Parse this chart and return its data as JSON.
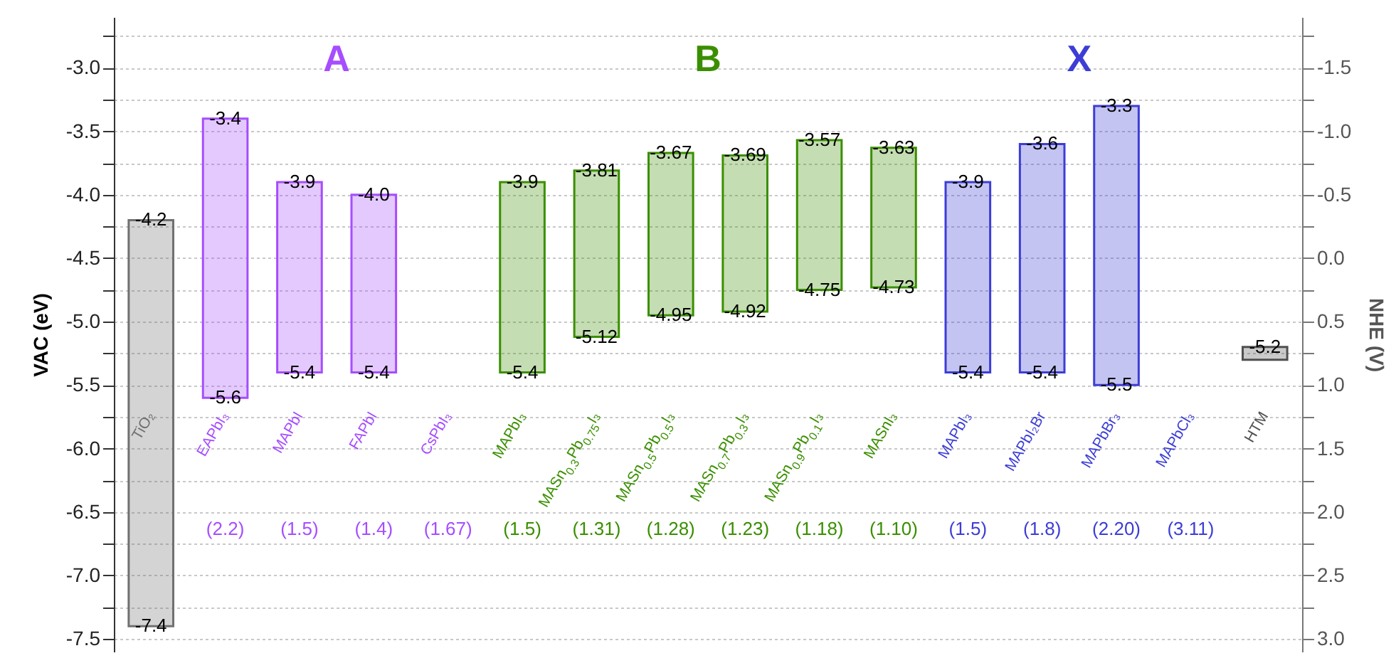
{
  "chart_data": {
    "type": "bar",
    "ylabel": "VAC (eV)",
    "y2label": "NHE (V)",
    "categories": [
      "TiO₂",
      "EAPbI₃",
      "MAPbI",
      "FAPbI",
      "CsPbI₃",
      "MAPbI₃",
      "MASn$_{0.3}$Pb$_{0.75}$I₃",
      "MASn$_{0.5}$Pb$_{0.5}$I₃",
      "MASn$_{0.7}$Pb$_{0.3}$I₃",
      "MASn$_{0.9}$Pb$_{0.1}$I₃",
      "MASnI₃",
      "MAPbI₃",
      "MAPbI₂Br",
      "MAPbBr₃",
      "MAPbCl₃",
      "HTM"
    ],
    "base": [
      -7.4,
      -5.6,
      -5.4,
      -5.4,
      null,
      -5.4,
      -5.12,
      -4.95,
      -4.92,
      -4.75,
      -4.73,
      -5.4,
      -5.4,
      -5.5,
      null,
      -5.3
    ],
    "values": [
      3.2,
      2.2,
      1.5,
      1.4,
      null,
      1.5,
      1.31,
      1.28,
      1.23,
      1.18,
      1.1,
      1.5,
      1.8,
      2.2,
      null,
      0.1
    ],
    "colors": [
      "#707070",
      "#a64dff",
      "#a64dff",
      "#a64dff",
      "#a64dff",
      "#3a8f00",
      "#3a8f00",
      "#3a8f00",
      "#3a8f00",
      "#3a8f00",
      "#3a8f00",
      "#3d3dd6",
      "#3d3dd6",
      "#3d3dd6",
      "#3d3dd6",
      "#505050"
    ],
    "ylim": [
      -7.6,
      -2.6
    ],
    "yticks": [
      {
        "value": -7.5,
        "label": "-7.5"
      },
      {
        "value": -7.25,
        "label": null
      },
      {
        "value": -7,
        "label": "-7.0"
      },
      {
        "value": -6.75,
        "label": null
      },
      {
        "value": -6.5,
        "label": "-6.5"
      },
      {
        "value": -6.25,
        "label": null
      },
      {
        "value": -6,
        "label": "-6.0"
      },
      {
        "value": -5.75,
        "label": null
      },
      {
        "value": -5.5,
        "label": "-5.5"
      },
      {
        "value": -5.25,
        "label": null
      },
      {
        "value": -5,
        "label": "-5.0"
      },
      {
        "value": -4.75,
        "label": null
      },
      {
        "value": -4.5,
        "label": "-4.5"
      },
      {
        "value": -4.25,
        "label": null
      },
      {
        "value": -4,
        "label": "-4.0"
      },
      {
        "value": -3.75,
        "label": null
      },
      {
        "value": -3.5,
        "label": "-3.5"
      },
      {
        "value": -3.25,
        "label": null
      },
      {
        "value": -3,
        "label": "-3.0"
      },
      {
        "value": -2.75,
        "label": null
      }
    ],
    "y2lim": [
      3.1,
      -1.9
    ],
    "y2ticks": [
      {
        "value": 3,
        "label": "3.0"
      },
      {
        "value": 2.75,
        "label": null
      },
      {
        "value": 2.5,
        "label": "2.5"
      },
      {
        "value": 2.25,
        "label": null
      },
      {
        "value": 2,
        "label": "2.0"
      },
      {
        "value": 1.75,
        "label": null
      },
      {
        "value": 1.5,
        "label": "1.5"
      },
      {
        "value": 1.25,
        "label": null
      },
      {
        "value": 1,
        "label": "1.0"
      },
      {
        "value": 0.75,
        "label": null
      },
      {
        "value": 0.5,
        "label": "0.5"
      },
      {
        "value": 0.25,
        "label": null
      },
      {
        "value": 0,
        "label": "0.0"
      },
      {
        "value": -0.25,
        "label": null
      },
      {
        "value": -0.5,
        "label": "-0.5"
      },
      {
        "value": -0.75,
        "label": null
      },
      {
        "value": -1,
        "label": "-1.0"
      },
      {
        "value": -1.25,
        "label": null
      },
      {
        "value": -1.5,
        "label": "-1.5"
      },
      {
        "value": -1.75,
        "label": null
      }
    ],
    "grid": true,
    "annotations": [
      {
        "text": "-4.2",
        "x": "TiO₂",
        "y": -4.2
      },
      {
        "text": "-7.4",
        "x": "TiO₂",
        "y": -7.4
      },
      {
        "text": "-3.4",
        "x": "EAPbI₃",
        "y": -3.4
      },
      {
        "text": "-5.6",
        "x": "EAPbI₃",
        "y": -5.6
      },
      {
        "text": "-3.9",
        "x": "MAPbI",
        "y": -3.9
      },
      {
        "text": "-5.4",
        "x": "MAPbI",
        "y": -5.4
      },
      {
        "text": "-4.0",
        "x": "FAPbI",
        "y": -4.0
      },
      {
        "text": "-5.4",
        "x": "FAPbI",
        "y": -5.4
      },
      {
        "text": "-3.9",
        "x": "MAPbI₃",
        "y": -3.9
      },
      {
        "text": "-5.4",
        "x": "MAPbI₃",
        "y": -5.4
      },
      {
        "text": "-3.81",
        "x": "MASn$_{0.3}$Pb$_{0.75}$I₃",
        "y": -3.81
      },
      {
        "text": "-5.12",
        "x": "MASn$_{0.3}$Pb$_{0.75}$I₃",
        "y": -5.12
      },
      {
        "text": "-3.67",
        "x": "MASn$_{0.5}$Pb$_{0.5}$I₃",
        "y": -3.67
      },
      {
        "text": "-4.95",
        "x": "MASn$_{0.5}$Pb$_{0.5}$I₃",
        "y": -4.95
      },
      {
        "text": "-3.69",
        "x": "MASn$_{0.7}$Pb$_{0.3}$I₃",
        "y": -3.69
      },
      {
        "text": "-4.92",
        "x": "MASn$_{0.7}$Pb$_{0.3}$I₃",
        "y": -4.92
      },
      {
        "text": "-3.57",
        "x": "MASn$_{0.9}$Pb$_{0.1}$I₃",
        "y": -3.57
      },
      {
        "text": "-4.75",
        "x": "MASn$_{0.9}$Pb$_{0.1}$I₃",
        "y": -4.75
      },
      {
        "text": "-3.63",
        "x": "MASnI₃",
        "y": -3.63
      },
      {
        "text": "-4.73",
        "x": "MASnI₃",
        "y": -4.73
      },
      {
        "text": "-3.6",
        "x": "MAPbI₂Br",
        "y": -3.6
      },
      {
        "text": "-5.4",
        "x": "MAPbI₂Br",
        "y": -5.4
      },
      {
        "text": "-3.3",
        "x": "MAPbBr₃",
        "y": -3.3
      },
      {
        "text": "-5.5",
        "x": "MAPbBr₃",
        "y": -5.5
      },
      {
        "text": "-5.2",
        "x": "HTM",
        "y": -5.2
      },
      "(2.2)",
      "(1.5)",
      "(1.4)",
      "(1.67)",
      "(1.5)",
      "(1.31)",
      "(1.28)",
      "(1.23)",
      "(1.18)",
      "(1.10)",
      "(1.5)",
      "(1.8)",
      "(2.20)",
      "(3.11)",
      "A",
      "B",
      "X",
      "-3.9",
      "-5.4"
    ]
  }
}
